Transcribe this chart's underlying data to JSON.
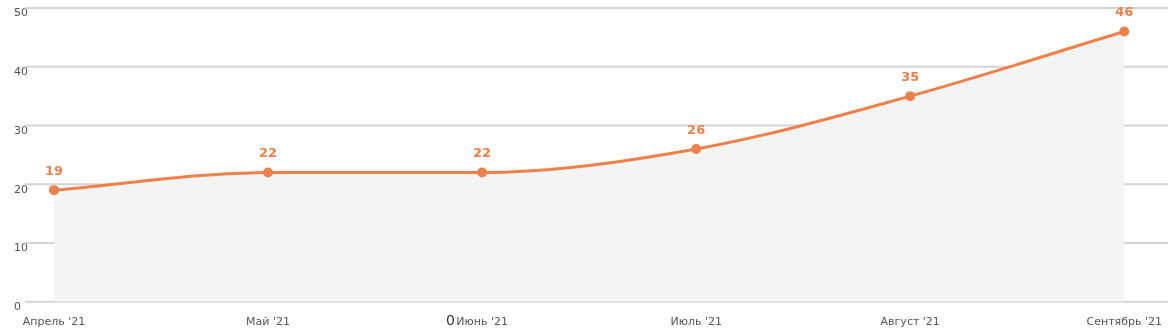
{
  "chart_data": {
    "type": "area",
    "categories": [
      "Апрель '21",
      "Май '21",
      "Июнь '21",
      "Июль '21",
      "Август '21",
      "Сентябрь '21"
    ],
    "series": [
      {
        "color": "#ee8149",
        "values": [
          19,
          22,
          22,
          26,
          35,
          46
        ]
      }
    ],
    "ylim": [
      0,
      50
    ],
    "yticks": [
      0,
      10,
      20,
      30,
      40,
      50
    ],
    "grid": "y",
    "legend": false,
    "marker": "circle",
    "line_style": "solid",
    "data_labels": true,
    "annotations": [
      "0"
    ]
  }
}
